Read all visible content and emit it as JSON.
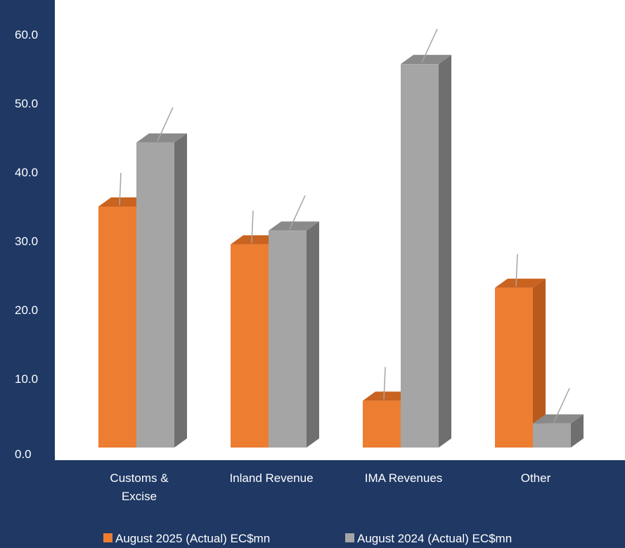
{
  "chart_data": {
    "type": "bar",
    "title": "",
    "xlabel": "",
    "ylabel": "",
    "ylim": [
      0,
      60
    ],
    "yticks": [
      "0.0",
      "10.0",
      "20.0",
      "30.0",
      "40.0",
      "50.0",
      "60.0"
    ],
    "categories": [
      [
        "Customs &",
        "Excise"
      ],
      [
        "Inland Revenue"
      ],
      [
        "IMA Revenues"
      ],
      [
        "Other"
      ]
    ],
    "series": [
      {
        "name": "August 2025 (Actual) EC$mn",
        "values": [
          35.0,
          29.5,
          6.8,
          23.2
        ],
        "color": "#ed7d31",
        "side_color": "#b85a1e",
        "top_color": "#c9631f"
      },
      {
        "name": "August 2024 (Actual) EC$mn",
        "values": [
          44.3,
          31.5,
          55.7,
          3.5
        ],
        "color": "#a5a5a5",
        "side_color": "#6f6f6f",
        "top_color": "#8a8a8a"
      }
    ],
    "grid": false,
    "legend_position": "bottom",
    "style": "3d-bar"
  }
}
